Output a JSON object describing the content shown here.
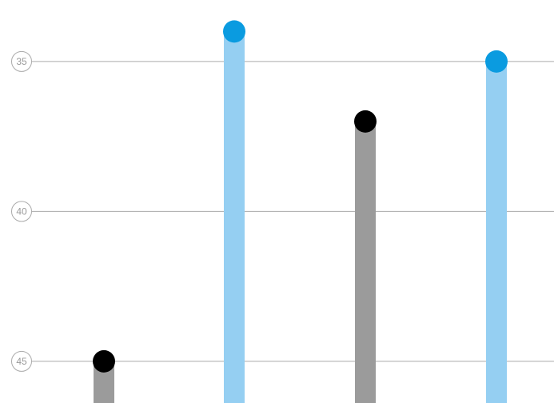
{
  "chart_data": {
    "type": "lollipop",
    "categories": [
      null,
      null,
      null,
      null
    ],
    "values": [
      45,
      34,
      37,
      35
    ],
    "bar_colors": [
      "#9b9b9b",
      "#95cff2",
      "#9b9b9b",
      "#95cff2"
    ],
    "dot_colors": [
      "#000000",
      "#0a9be0",
      "#000000",
      "#0a9be0"
    ],
    "ylim": [
      46.39,
      32.95
    ],
    "yticks": [
      35,
      40,
      45
    ],
    "grid": true
  }
}
